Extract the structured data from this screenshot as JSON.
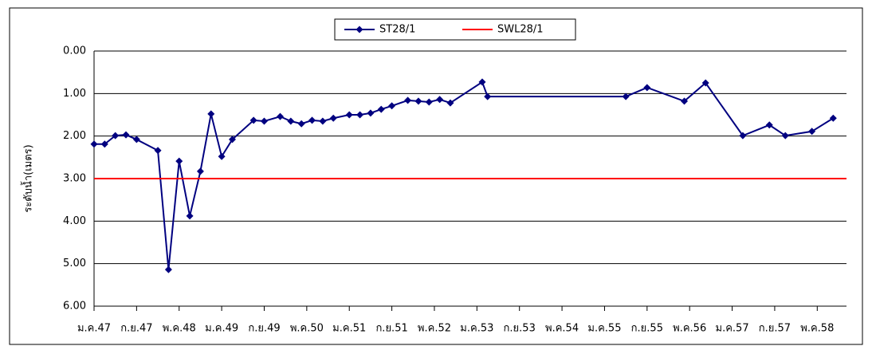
{
  "chart_data": {
    "type": "line",
    "y_label": "ระดับน้ำ(เมตร)",
    "xlim": [
      0,
      141.5
    ],
    "xticks": [
      {
        "value": 0,
        "label": "ม.ค.47"
      },
      {
        "value": 8,
        "label": "ก.ย.47"
      },
      {
        "value": 16,
        "label": "พ.ค.48"
      },
      {
        "value": 24,
        "label": "ม.ค.49"
      },
      {
        "value": 32,
        "label": "ก.ย.49"
      },
      {
        "value": 40,
        "label": "พ.ค.50"
      },
      {
        "value": 48,
        "label": "ม.ค.51"
      },
      {
        "value": 56,
        "label": "ก.ย.51"
      },
      {
        "value": 64,
        "label": "พ.ค.52"
      },
      {
        "value": 72,
        "label": "ม.ค.53"
      },
      {
        "value": 80,
        "label": "ก.ย.53"
      },
      {
        "value": 88,
        "label": "พ.ค.54"
      },
      {
        "value": 96,
        "label": "ม.ค.55"
      },
      {
        "value": 104,
        "label": "ก.ย.55"
      },
      {
        "value": 112,
        "label": "พ.ค.56"
      },
      {
        "value": 120,
        "label": "ม.ค.57"
      },
      {
        "value": 128,
        "label": "ก.ย.57"
      },
      {
        "value": 136,
        "label": "พ.ค.58"
      }
    ],
    "ylim": [
      0,
      6
    ],
    "y_inverted": true,
    "yticks": [
      {
        "value": 0,
        "label": "0.00"
      },
      {
        "value": 1,
        "label": "1.00"
      },
      {
        "value": 2,
        "label": "2.00"
      },
      {
        "value": 3,
        "label": "3.00"
      },
      {
        "value": 4,
        "label": "4.00"
      },
      {
        "value": 5,
        "label": "5.00"
      },
      {
        "value": 6,
        "label": "6.00"
      }
    ],
    "grid": true,
    "legend": "top",
    "series": [
      {
        "name": "ST28/1",
        "color": "#000080",
        "marker": "diamond",
        "x": [
          0,
          2,
          4,
          6,
          8,
          12,
          14,
          16,
          18,
          20,
          22,
          24,
          26,
          30,
          32,
          35,
          37,
          39,
          41,
          43,
          45,
          48,
          50,
          52,
          54,
          56,
          59,
          61,
          63,
          65,
          67,
          73,
          74,
          100,
          104,
          111,
          115,
          122,
          127,
          130,
          135,
          139
        ],
        "values": [
          2.19,
          2.19,
          1.99,
          1.97,
          2.08,
          2.34,
          5.14,
          2.59,
          3.88,
          2.83,
          1.48,
          2.48,
          2.08,
          1.63,
          1.65,
          1.54,
          1.65,
          1.71,
          1.63,
          1.65,
          1.58,
          1.5,
          1.5,
          1.46,
          1.37,
          1.29,
          1.16,
          1.18,
          1.2,
          1.14,
          1.22,
          0.73,
          1.07,
          1.07,
          0.86,
          1.18,
          0.75,
          1.99,
          1.74,
          1.99,
          1.89,
          1.58
        ]
      },
      {
        "name": "SWL28/1",
        "color": "#ff0000",
        "marker": "none",
        "x": [
          0,
          141.5
        ],
        "values": [
          3,
          3
        ]
      }
    ]
  }
}
